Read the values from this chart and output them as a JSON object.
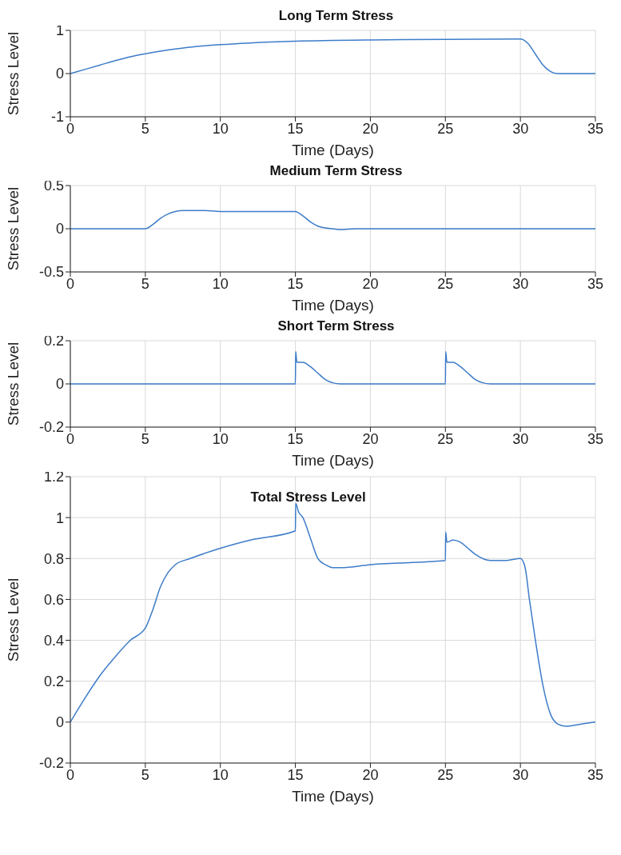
{
  "chart_data": [
    {
      "type": "line",
      "title": "Long Term Stress",
      "xlabel": "Time (Days)",
      "ylabel": "Stress Level",
      "xlim": [
        0,
        35
      ],
      "xticks": [
        0,
        5,
        10,
        15,
        20,
        25,
        30,
        35
      ],
      "ylim": [
        -1,
        1
      ],
      "yticks": [
        -1,
        0,
        1
      ],
      "grid": true,
      "series": [
        {
          "color": "#3d7cc9",
          "x": [
            0,
            1,
            2,
            3,
            4,
            5,
            6,
            7,
            8,
            10,
            12,
            15,
            20,
            25,
            30,
            30.5,
            31,
            31.5,
            32,
            32.5,
            35
          ],
          "values": [
            0,
            0.1,
            0.2,
            0.3,
            0.39,
            0.46,
            0.52,
            0.57,
            0.61,
            0.67,
            0.71,
            0.75,
            0.78,
            0.79,
            0.8,
            0.7,
            0.45,
            0.2,
            0.05,
            0,
            0
          ]
        }
      ]
    },
    {
      "type": "line",
      "title": "Medium Term Stress",
      "xlabel": "Time (Days)",
      "ylabel": "Stress Level",
      "xlim": [
        0,
        35
      ],
      "xticks": [
        0,
        5,
        10,
        15,
        20,
        25,
        30,
        35
      ],
      "ylim": [
        -0.5,
        0.5
      ],
      "yticks": [
        -0.5,
        0,
        0.5
      ],
      "grid": true,
      "series": [
        {
          "color": "#3d7cc9",
          "x": [
            0,
            5,
            5.5,
            6,
            6.5,
            7,
            7.5,
            9,
            10,
            15,
            15.5,
            16,
            16.5,
            17,
            17.5,
            18,
            19,
            35
          ],
          "values": [
            0,
            0,
            0.05,
            0.12,
            0.17,
            0.2,
            0.21,
            0.21,
            0.2,
            0.2,
            0.15,
            0.08,
            0.03,
            0.01,
            0,
            -0.01,
            0,
            0
          ]
        }
      ]
    },
    {
      "type": "line",
      "title": "Short Term Stress",
      "xlabel": "Time (Days)",
      "ylabel": "Stress Level",
      "xlim": [
        0,
        35
      ],
      "xticks": [
        0,
        5,
        10,
        15,
        20,
        25,
        30,
        35
      ],
      "ylim": [
        -0.2,
        0.2
      ],
      "yticks": [
        -0.2,
        0,
        0.2
      ],
      "grid": true,
      "series": [
        {
          "color": "#3d7cc9",
          "x": [
            0,
            15,
            15.02,
            15.1,
            15.5,
            16,
            16.5,
            17,
            17.5,
            18,
            25,
            25.02,
            25.1,
            25.5,
            26,
            26.5,
            27,
            27.5,
            28,
            35
          ],
          "values": [
            0,
            0,
            0.15,
            0.1,
            0.1,
            0.08,
            0.05,
            0.02,
            0.005,
            0,
            0,
            0.15,
            0.1,
            0.1,
            0.08,
            0.05,
            0.02,
            0.005,
            0,
            0
          ]
        }
      ]
    },
    {
      "type": "line",
      "title": "Total Stress Level",
      "xlabel": "Time (Days)",
      "ylabel": "Stress Level",
      "xlim": [
        0,
        35
      ],
      "xticks": [
        0,
        5,
        10,
        15,
        20,
        25,
        30,
        35
      ],
      "ylim": [
        -0.2,
        1.2
      ],
      "yticks": [
        -0.2,
        0,
        0.2,
        0.4,
        0.6,
        0.8,
        1,
        1.2
      ],
      "grid": true,
      "series": [
        {
          "color": "#3d7cc9",
          "x": [
            0,
            1,
            2,
            3,
            4,
            5,
            5.5,
            6,
            6.5,
            7,
            8,
            10,
            12,
            15,
            15.02,
            15.2,
            15.5,
            16,
            16.5,
            17,
            17.5,
            18,
            20,
            25,
            25.02,
            25.1,
            25.5,
            26,
            26.5,
            27,
            28,
            29,
            30,
            30.3,
            30.6,
            31,
            31.5,
            32,
            32.5,
            33,
            34,
            35
          ],
          "values": [
            0,
            0.12,
            0.23,
            0.32,
            0.4,
            0.46,
            0.55,
            0.66,
            0.73,
            0.77,
            0.8,
            0.85,
            0.89,
            0.935,
            1.07,
            1.03,
            1.0,
            0.9,
            0.8,
            0.77,
            0.755,
            0.755,
            0.77,
            0.79,
            0.93,
            0.88,
            0.89,
            0.88,
            0.85,
            0.82,
            0.79,
            0.79,
            0.8,
            0.76,
            0.6,
            0.4,
            0.18,
            0.04,
            -0.01,
            -0.02,
            -0.01,
            0
          ]
        }
      ]
    }
  ]
}
